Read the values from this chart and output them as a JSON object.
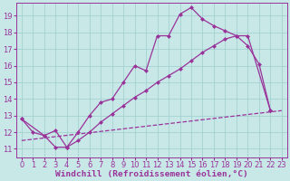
{
  "bg_color": "#c8e8e8",
  "line_color": "#993399",
  "grid_color": "#9ecece",
  "xlabel": "Windchill (Refroidissement éolien,°C)",
  "xlabel_fontsize": 6.8,
  "tick_fontsize": 6.0,
  "xlim": [
    -0.5,
    23.5
  ],
  "ylim": [
    10.5,
    19.8
  ],
  "xticks": [
    0,
    1,
    2,
    3,
    4,
    5,
    6,
    7,
    8,
    9,
    10,
    11,
    12,
    13,
    14,
    15,
    16,
    17,
    18,
    19,
    20,
    21,
    22,
    23
  ],
  "yticks": [
    11,
    12,
    13,
    14,
    15,
    16,
    17,
    18,
    19
  ],
  "curve1_x": [
    0,
    1,
    2,
    3,
    4,
    5,
    6,
    7,
    8,
    9,
    10,
    11,
    12,
    13,
    14,
    15,
    16,
    17,
    18,
    19,
    20,
    21,
    22
  ],
  "curve1_y": [
    12.8,
    12.0,
    11.8,
    11.1,
    11.1,
    12.0,
    13.0,
    13.8,
    14.0,
    15.0,
    16.0,
    15.7,
    17.8,
    17.8,
    19.1,
    19.5,
    18.8,
    18.4,
    18.1,
    17.8,
    17.2,
    16.1,
    13.3
  ],
  "curve2_x": [
    0,
    2,
    3,
    4,
    5,
    6,
    7,
    8,
    9,
    10,
    11,
    12,
    13,
    14,
    15,
    16,
    17,
    18,
    19,
    20,
    22
  ],
  "curve2_y": [
    12.8,
    11.8,
    12.1,
    11.1,
    11.5,
    12.0,
    12.6,
    13.1,
    13.6,
    14.1,
    14.5,
    15.0,
    15.4,
    15.8,
    16.3,
    16.8,
    17.2,
    17.6,
    17.8,
    17.8,
    13.3
  ],
  "line3_x": [
    0,
    23
  ],
  "line3_y": [
    11.5,
    13.3
  ]
}
